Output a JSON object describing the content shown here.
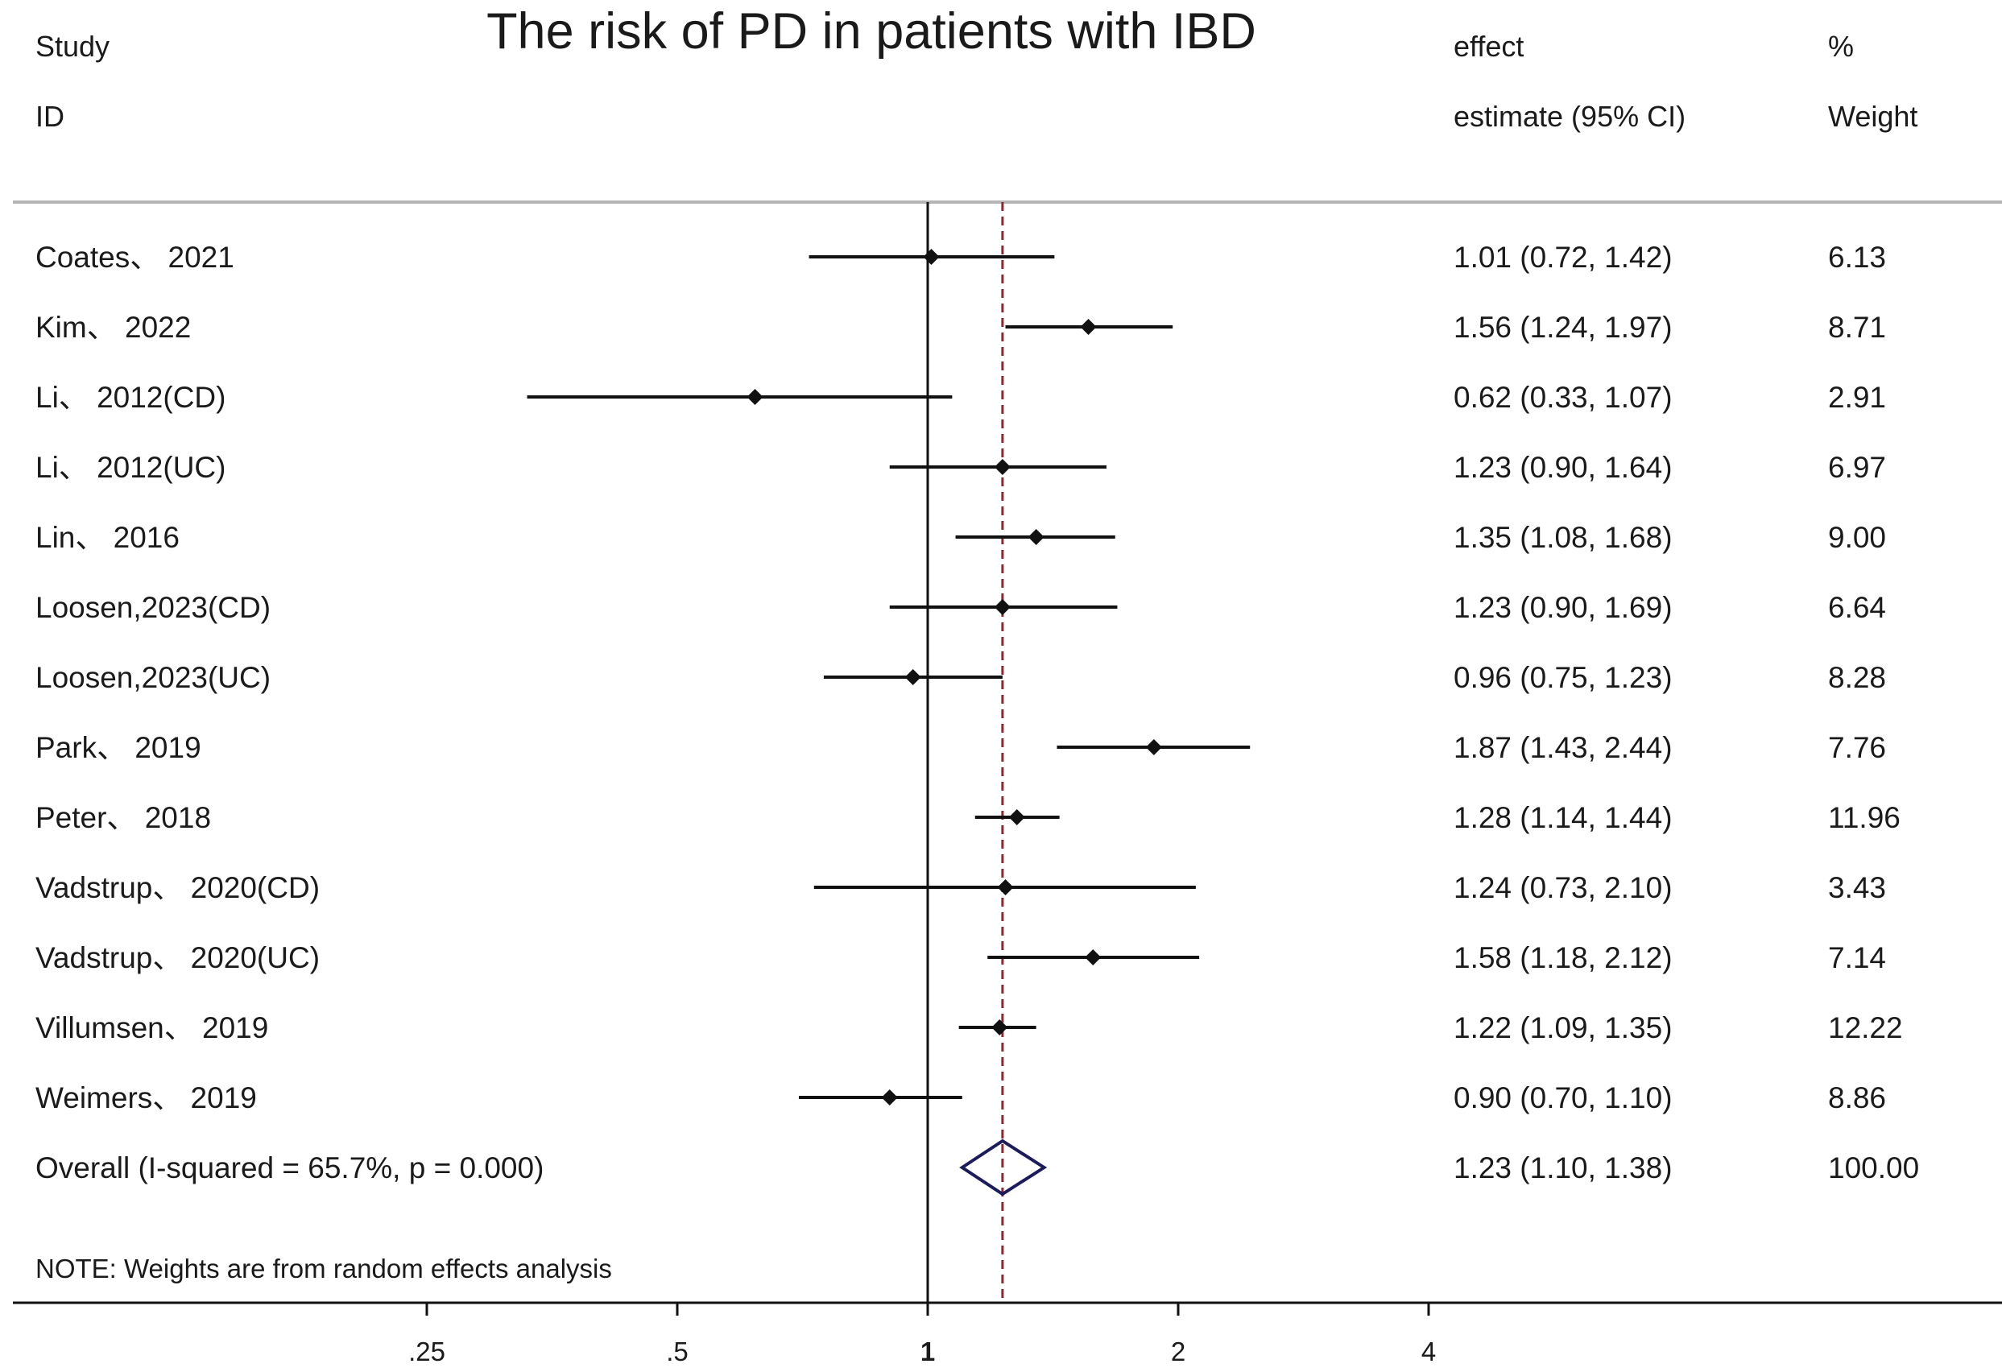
{
  "chart_data": {
    "type": "forest",
    "title": "The risk of PD in patients with IBD",
    "headers": {
      "study": [
        "Study",
        "ID"
      ],
      "estimate": [
        "effect",
        "estimate (95% CI)"
      ],
      "weight": [
        "%",
        "Weight"
      ]
    },
    "x_scale": "log",
    "x_ticks": [
      0.25,
      0.5,
      1,
      2,
      4
    ],
    "x_tick_labels": [
      ".25",
      ".5",
      "1",
      "2",
      "4"
    ],
    "null_line": 1,
    "pooled_line": 1.23,
    "studies": [
      {
        "label": "Coates、 2021",
        "est": 1.01,
        "lo": 0.72,
        "hi": 1.42,
        "ci_text": "1.01 (0.72, 1.42)",
        "weight": "6.13"
      },
      {
        "label": "Kim、 2022",
        "est": 1.56,
        "lo": 1.24,
        "hi": 1.97,
        "ci_text": "1.56 (1.24, 1.97)",
        "weight": "8.71"
      },
      {
        "label": "Li、 2012(CD)",
        "est": 0.62,
        "lo": 0.33,
        "hi": 1.07,
        "ci_text": "0.62 (0.33, 1.07)",
        "weight": "2.91"
      },
      {
        "label": "Li、 2012(UC)",
        "est": 1.23,
        "lo": 0.9,
        "hi": 1.64,
        "ci_text": "1.23 (0.90, 1.64)",
        "weight": "6.97"
      },
      {
        "label": "Lin、 2016",
        "est": 1.35,
        "lo": 1.08,
        "hi": 1.68,
        "ci_text": "1.35 (1.08, 1.68)",
        "weight": "9.00"
      },
      {
        "label": "Loosen,2023(CD)",
        "est": 1.23,
        "lo": 0.9,
        "hi": 1.69,
        "ci_text": "1.23 (0.90, 1.69)",
        "weight": "6.64"
      },
      {
        "label": "Loosen,2023(UC)",
        "est": 0.96,
        "lo": 0.75,
        "hi": 1.23,
        "ci_text": "0.96 (0.75, 1.23)",
        "weight": "8.28"
      },
      {
        "label": "Park、 2019",
        "est": 1.87,
        "lo": 1.43,
        "hi": 2.44,
        "ci_text": "1.87 (1.43, 2.44)",
        "weight": "7.76"
      },
      {
        "label": "Peter、 2018",
        "est": 1.28,
        "lo": 1.14,
        "hi": 1.44,
        "ci_text": "1.28 (1.14, 1.44)",
        "weight": "11.96"
      },
      {
        "label": "Vadstrup、 2020(CD)",
        "est": 1.24,
        "lo": 0.73,
        "hi": 2.1,
        "ci_text": "1.24 (0.73, 2.10)",
        "weight": "3.43"
      },
      {
        "label": "Vadstrup、 2020(UC)",
        "est": 1.58,
        "lo": 1.18,
        "hi": 2.12,
        "ci_text": "1.58 (1.18, 2.12)",
        "weight": "7.14"
      },
      {
        "label": "Villumsen、 2019",
        "est": 1.22,
        "lo": 1.09,
        "hi": 1.35,
        "ci_text": "1.22 (1.09, 1.35)",
        "weight": "12.22"
      },
      {
        "label": "Weimers、 2019",
        "est": 0.9,
        "lo": 0.7,
        "hi": 1.1,
        "ci_text": "0.90 (0.70, 1.10)",
        "weight": "8.86"
      }
    ],
    "overall": {
      "label": "Overall  (I-squared = 65.7%, p = 0.000)",
      "est": 1.23,
      "lo": 1.1,
      "hi": 1.38,
      "ci_text": "1.23 (1.10, 1.38)",
      "weight": "100.00"
    },
    "note": "NOTE: Weights are from random effects analysis",
    "colors": {
      "ink": "#111111",
      "rule": "#b5b5b5",
      "pooled_line": "#8a2a30",
      "diamond": "#1c1c5a"
    }
  }
}
